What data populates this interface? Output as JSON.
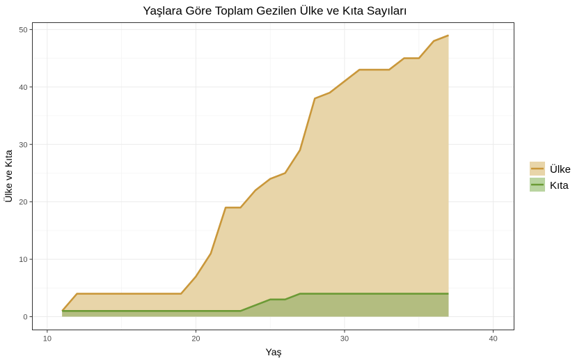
{
  "chart_data": {
    "type": "area",
    "title": "Yaşlara Göre Toplam Gezilen Ülke ve Kıta Sayıları",
    "xlabel": "Yaş",
    "ylabel": "Ülke ve Kıta",
    "xlim": [
      9,
      41.4
    ],
    "ylim": [
      -2.3,
      51.2
    ],
    "xticks": [
      10,
      20,
      30,
      40
    ],
    "yticks": [
      0,
      10,
      20,
      30,
      40,
      50
    ],
    "grid": true,
    "legend_position": "right",
    "x": [
      11,
      12,
      13,
      14,
      15,
      16,
      17,
      18,
      19,
      20,
      21,
      22,
      23,
      24,
      25,
      26,
      27,
      28,
      29,
      30,
      31,
      32,
      33,
      34,
      35,
      36,
      37
    ],
    "series": [
      {
        "name": "Ülke",
        "line_color": "#c9973a",
        "fill_color": "#e8d5a9",
        "values": [
          1,
          4,
          4,
          4,
          4,
          4,
          4,
          4,
          4,
          7,
          11,
          19,
          19,
          22,
          24,
          25,
          29,
          38,
          39,
          41,
          43,
          43,
          43,
          45,
          45,
          48,
          49
        ]
      },
      {
        "name": "Kıta",
        "line_color": "#6b9a35",
        "fill_color": "#b3bd80",
        "legend_fill": "#b9d4a0",
        "values": [
          1,
          1,
          1,
          1,
          1,
          1,
          1,
          1,
          1,
          1,
          1,
          1,
          1,
          2,
          3,
          3,
          4,
          4,
          4,
          4,
          4,
          4,
          4,
          4,
          4,
          4,
          4
        ]
      }
    ]
  }
}
